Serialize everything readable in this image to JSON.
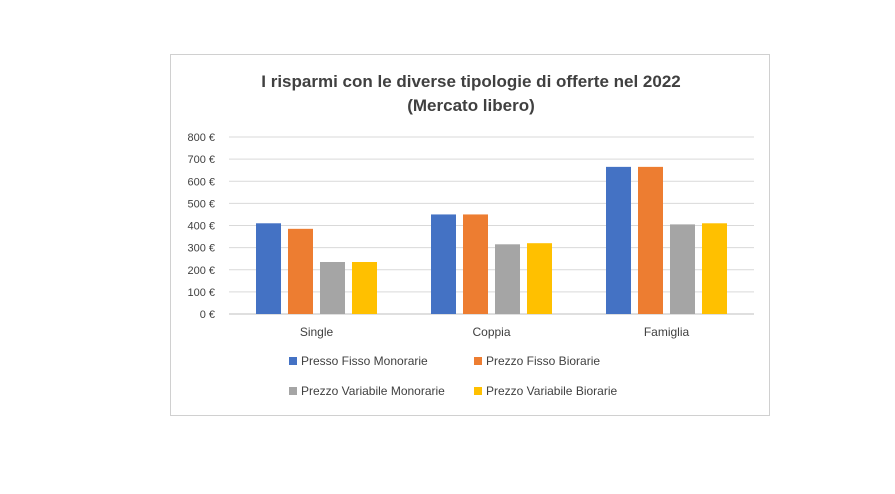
{
  "chart_data": {
    "type": "bar",
    "title": "I risparmi con le diverse tipologie di offerte nel 2022",
    "subtitle": "(Mercato libero)",
    "categories": [
      "Single",
      "Coppia",
      "Famiglia"
    ],
    "y_ticks": [
      "0 €",
      "100 €",
      "200 €",
      "300 €",
      "400 €",
      "500 €",
      "600 €",
      "700 €",
      "800 €"
    ],
    "ylim": [
      0,
      800
    ],
    "grid": true,
    "legend_position": "bottom",
    "series": [
      {
        "name": "Presso Fisso Monorarie",
        "color": "#4472C4",
        "values": [
          410,
          450,
          665
        ]
      },
      {
        "name": "Prezzo Fisso Biorarie",
        "color": "#ED7D31",
        "values": [
          385,
          450,
          665
        ]
      },
      {
        "name": "Prezzo Variabile Monorarie",
        "color": "#A5A5A5",
        "values": [
          235,
          315,
          405
        ]
      },
      {
        "name": "Prezzo Variabile Biorarie",
        "color": "#FFC000",
        "values": [
          235,
          320,
          410
        ]
      }
    ]
  }
}
